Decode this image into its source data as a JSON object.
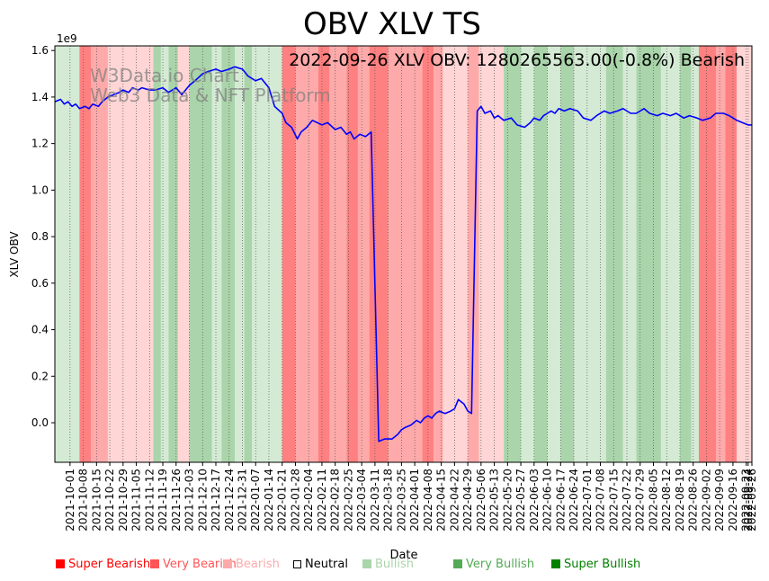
{
  "chart_data": {
    "type": "line",
    "title": "OBV XLV TS",
    "annotation": "2022-09-26 XLV OBV: 1280265563.00(-0.8%) Bearish",
    "watermark": [
      "W3Data.io Chart",
      "Web3 Data & NFT Platform"
    ],
    "xlabel": "Date",
    "ylabel": "XLV OBV",
    "y_scale_label": "1e9",
    "ylim": [
      -0.17,
      1.62
    ],
    "yticks": [
      0.0,
      0.2,
      0.4,
      0.6,
      0.8,
      1.0,
      1.2,
      1.4,
      1.6
    ],
    "ytick_labels": [
      "0.0",
      "0.2",
      "0.4",
      "0.6",
      "0.8",
      "1.0",
      "1.2",
      "1.4",
      "1.6"
    ],
    "xlim": [
      -8,
      360
    ],
    "x_tick_days": [
      0,
      7,
      14,
      21,
      28,
      35,
      42,
      49,
      56,
      63,
      70,
      77,
      84,
      91,
      98,
      105,
      112,
      119,
      126,
      133,
      140,
      147,
      154,
      161,
      168,
      175,
      182,
      189,
      196,
      203,
      210,
      217,
      224,
      231,
      238,
      245,
      252,
      259,
      266,
      273,
      280,
      287,
      294,
      301,
      308,
      315,
      322,
      329,
      336,
      343,
      350,
      357,
      358,
      360
    ],
    "x_tick_labels": [
      "2021-10-01",
      "2021-10-08",
      "2021-10-15",
      "2021-10-22",
      "2021-10-29",
      "2021-11-05",
      "2021-11-12",
      "2021-11-19",
      "2021-11-26",
      "2021-12-03",
      "2021-12-10",
      "2021-12-17",
      "2021-12-24",
      "2021-12-31",
      "2022-01-07",
      "2022-01-14",
      "2022-01-21",
      "2022-01-28",
      "2022-02-04",
      "2022-02-11",
      "2022-02-18",
      "2022-02-25",
      "2022-03-04",
      "2022-03-11",
      "2022-03-18",
      "2022-03-25",
      "2022-04-01",
      "2022-04-08",
      "2022-04-15",
      "2022-04-22",
      "2022-04-29",
      "2022-05-06",
      "2022-05-13",
      "2022-05-20",
      "2022-05-27",
      "2022-06-03",
      "2022-06-10",
      "2022-06-17",
      "2022-06-24",
      "2022-07-01",
      "2022-07-08",
      "2022-07-15",
      "2022-07-22",
      "2022-07-29",
      "2022-08-05",
      "2022-08-12",
      "2022-08-19",
      "2022-08-26",
      "2022-09-02",
      "2022-09-09",
      "2022-09-16",
      "2022-09-23",
      "2022-09-24",
      "2022-09-26"
    ],
    "series": [
      {
        "name": "XLV OBV",
        "color": "#0000ff",
        "x": [
          -8,
          -5,
          -3,
          -1,
          1,
          3,
          5,
          8,
          10,
          12,
          15,
          17,
          20,
          23,
          26,
          28,
          31,
          33,
          36,
          38,
          42,
          45,
          49,
          52,
          56,
          59,
          63,
          66,
          70,
          73,
          77,
          80,
          84,
          87,
          91,
          94,
          98,
          101,
          105,
          108,
          112,
          114,
          117,
          120,
          122,
          125,
          128,
          133,
          136,
          140,
          143,
          146,
          148,
          150,
          153,
          156,
          159,
          163,
          166,
          170,
          173,
          175,
          177,
          180,
          183,
          185,
          187,
          189,
          191,
          193,
          195,
          198,
          201,
          203,
          205,
          208,
          210,
          212,
          215,
          217,
          219,
          222,
          224,
          226,
          229,
          233,
          236,
          240,
          243,
          245,
          248,
          250,
          252,
          254,
          256,
          258,
          261,
          264,
          268,
          271,
          275,
          278,
          282,
          285,
          289,
          292,
          296,
          299,
          303,
          306,
          310,
          313,
          317,
          320,
          324,
          327,
          331,
          334,
          338,
          341,
          345,
          348,
          352,
          355,
          358,
          360
        ],
        "y": [
          1.38,
          1.39,
          1.37,
          1.38,
          1.36,
          1.37,
          1.35,
          1.36,
          1.35,
          1.37,
          1.36,
          1.38,
          1.4,
          1.41,
          1.42,
          1.43,
          1.42,
          1.44,
          1.43,
          1.44,
          1.43,
          1.43,
          1.44,
          1.42,
          1.44,
          1.41,
          1.45,
          1.47,
          1.5,
          1.51,
          1.52,
          1.51,
          1.52,
          1.53,
          1.52,
          1.49,
          1.47,
          1.48,
          1.44,
          1.36,
          1.33,
          1.29,
          1.27,
          1.22,
          1.25,
          1.27,
          1.3,
          1.28,
          1.29,
          1.26,
          1.27,
          1.24,
          1.25,
          1.22,
          1.24,
          1.23,
          1.25,
          -0.08,
          -0.07,
          -0.07,
          -0.05,
          -0.03,
          -0.02,
          -0.01,
          0.01,
          0.0,
          0.02,
          0.03,
          0.02,
          0.04,
          0.05,
          0.04,
          0.05,
          0.06,
          0.1,
          0.08,
          0.05,
          0.04,
          1.34,
          1.36,
          1.33,
          1.34,
          1.31,
          1.32,
          1.3,
          1.31,
          1.28,
          1.27,
          1.29,
          1.31,
          1.3,
          1.32,
          1.33,
          1.34,
          1.33,
          1.35,
          1.34,
          1.35,
          1.34,
          1.31,
          1.3,
          1.32,
          1.34,
          1.33,
          1.34,
          1.35,
          1.33,
          1.33,
          1.35,
          1.33,
          1.32,
          1.33,
          1.32,
          1.33,
          1.31,
          1.32,
          1.31,
          1.3,
          1.31,
          1.33,
          1.33,
          1.32,
          1.3,
          1.29,
          1.28,
          1.28
        ]
      }
    ],
    "bands": [
      {
        "x0": -8,
        "x1": 5,
        "state": "Bullish"
      },
      {
        "x0": 5,
        "x1": 11,
        "state": "Super Bearish"
      },
      {
        "x0": 11,
        "x1": 20,
        "state": "Very Bearish"
      },
      {
        "x0": 20,
        "x1": 44,
        "state": "Bearish"
      },
      {
        "x0": 44,
        "x1": 48,
        "state": "Very Bullish"
      },
      {
        "x0": 48,
        "x1": 52,
        "state": "Bullish"
      },
      {
        "x0": 52,
        "x1": 57,
        "state": "Very Bullish"
      },
      {
        "x0": 57,
        "x1": 63,
        "state": "Bearish"
      },
      {
        "x0": 63,
        "x1": 75,
        "state": "Very Bullish"
      },
      {
        "x0": 75,
        "x1": 80,
        "state": "Bullish"
      },
      {
        "x0": 80,
        "x1": 87,
        "state": "Very Bullish"
      },
      {
        "x0": 87,
        "x1": 92,
        "state": "Bullish"
      },
      {
        "x0": 92,
        "x1": 96,
        "state": "Very Bullish"
      },
      {
        "x0": 96,
        "x1": 112,
        "state": "Bullish"
      },
      {
        "x0": 112,
        "x1": 119,
        "state": "Super Bearish"
      },
      {
        "x0": 119,
        "x1": 131,
        "state": "Very Bearish"
      },
      {
        "x0": 131,
        "x1": 137,
        "state": "Super Bearish"
      },
      {
        "x0": 137,
        "x1": 146,
        "state": "Very Bearish"
      },
      {
        "x0": 146,
        "x1": 152,
        "state": "Super Bearish"
      },
      {
        "x0": 152,
        "x1": 158,
        "state": "Very Bearish"
      },
      {
        "x0": 158,
        "x1": 168,
        "state": "Super Bearish"
      },
      {
        "x0": 168,
        "x1": 186,
        "state": "Very Bearish"
      },
      {
        "x0": 186,
        "x1": 192,
        "state": "Super Bearish"
      },
      {
        "x0": 192,
        "x1": 197,
        "state": "Very Bearish"
      },
      {
        "x0": 197,
        "x1": 210,
        "state": "Bearish"
      },
      {
        "x0": 210,
        "x1": 216,
        "state": "Very Bearish"
      },
      {
        "x0": 216,
        "x1": 229,
        "state": "Bearish"
      },
      {
        "x0": 229,
        "x1": 238,
        "state": "Very Bullish"
      },
      {
        "x0": 238,
        "x1": 245,
        "state": "Bullish"
      },
      {
        "x0": 245,
        "x1": 252,
        "state": "Very Bullish"
      },
      {
        "x0": 252,
        "x1": 259,
        "state": "Bullish"
      },
      {
        "x0": 259,
        "x1": 266,
        "state": "Very Bullish"
      },
      {
        "x0": 266,
        "x1": 283,
        "state": "Bullish"
      },
      {
        "x0": 283,
        "x1": 292,
        "state": "Very Bullish"
      },
      {
        "x0": 292,
        "x1": 299,
        "state": "Bullish"
      },
      {
        "x0": 299,
        "x1": 312,
        "state": "Very Bullish"
      },
      {
        "x0": 312,
        "x1": 322,
        "state": "Bullish"
      },
      {
        "x0": 322,
        "x1": 328,
        "state": "Very Bullish"
      },
      {
        "x0": 328,
        "x1": 332,
        "state": "Bullish"
      },
      {
        "x0": 332,
        "x1": 341,
        "state": "Super Bearish"
      },
      {
        "x0": 341,
        "x1": 346,
        "state": "Very Bearish"
      },
      {
        "x0": 346,
        "x1": 352,
        "state": "Super Bearish"
      },
      {
        "x0": 352,
        "x1": 360,
        "state": "Bearish"
      }
    ],
    "legend": [
      {
        "label": "Super Bearish",
        "color": "#ff0000",
        "text_color": "#ff0000"
      },
      {
        "label": "Very Bearish",
        "color": "#ff5555",
        "text_color": "#ff5555"
      },
      {
        "label": "Bearish",
        "color": "#ffaaaa",
        "text_color": "#ffaaaa"
      },
      {
        "label": "Neutral",
        "color": "#ffffff",
        "text_color": "#000000"
      },
      {
        "label": "Bullish",
        "color": "#aad4aa",
        "text_color": "#aad4aa"
      },
      {
        "label": "Very Bullish",
        "color": "#55aa55",
        "text_color": "#55aa55"
      },
      {
        "label": "Super Bullish",
        "color": "#008000",
        "text_color": "#008000"
      }
    ],
    "band_colors": {
      "Super Bearish": "#ff8080",
      "Very Bearish": "#ffaaaa",
      "Bearish": "#ffd5d5",
      "Bullish": "#d4ead4",
      "Very Bullish": "#aad4aa",
      "Super Bullish": "#80bf80"
    }
  }
}
